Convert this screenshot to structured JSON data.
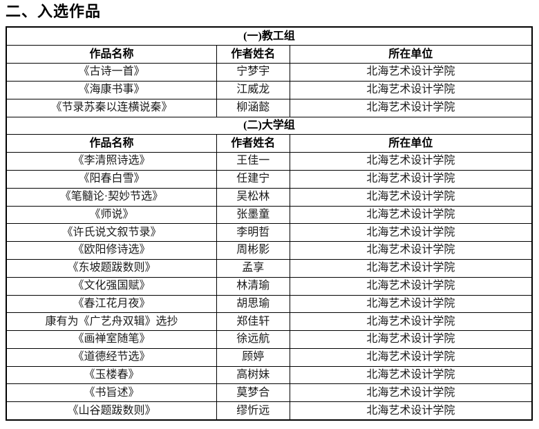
{
  "page": {
    "title": "二、入选作品"
  },
  "table": {
    "columns": [
      "作品名称",
      "作者姓名",
      "所在单位"
    ],
    "groups": [
      {
        "name": "(一)教工组",
        "rows": [
          {
            "work": "《古诗一首》",
            "author": "宁梦宇",
            "org": "北海艺术设计学院"
          },
          {
            "work": "《海康书事》",
            "author": "江威龙",
            "org": "北海艺术设计学院"
          },
          {
            "work": "《节录苏秦以连横说秦》",
            "author": "柳涵懿",
            "org": "北海艺术设计学院"
          }
        ]
      },
      {
        "name": "(二)大学组",
        "rows": [
          {
            "work": "《李清照诗选》",
            "author": "王佳一",
            "org": "北海艺术设计学院"
          },
          {
            "work": "《阳春白雪》",
            "author": "任建宁",
            "org": "北海艺术设计学院"
          },
          {
            "work": "《笔髓论·契妙节选》",
            "author": "吴松林",
            "org": "北海艺术设计学院"
          },
          {
            "work": "《师说》",
            "author": "张墨童",
            "org": "北海艺术设计学院"
          },
          {
            "work": "《许氏说文叙节录》",
            "author": "李明哲",
            "org": "北海艺术设计学院"
          },
          {
            "work": "《欧阳修诗选》",
            "author": "周彬影",
            "org": "北海艺术设计学院"
          },
          {
            "work": "《东坡题跋数则》",
            "author": "孟享",
            "org": "北海艺术设计学院"
          },
          {
            "work": "《文化强国赋》",
            "author": "林清瑜",
            "org": "北海艺术设计学院"
          },
          {
            "work": "《春江花月夜》",
            "author": "胡思瑜",
            "org": "北海艺术设计学院"
          },
          {
            "work": "康有为《广艺舟双辑》选抄",
            "author": "郑佳轩",
            "org": "北海艺术设计学院"
          },
          {
            "work": "《画禅室随笔》",
            "author": "徐远航",
            "org": "北海艺术设计学院"
          },
          {
            "work": "《道德经节选》",
            "author": "顾婷",
            "org": "北海艺术设计学院"
          },
          {
            "work": "《玉楼春》",
            "author": "高树妹",
            "org": "北海艺术设计学院"
          },
          {
            "work": "《书旨述》",
            "author": "莫梦合",
            "org": "北海艺术设计学院"
          },
          {
            "work": "《山谷题跋数则》",
            "author": "缪忻远",
            "org": "北海艺术设计学院"
          }
        ]
      }
    ]
  }
}
